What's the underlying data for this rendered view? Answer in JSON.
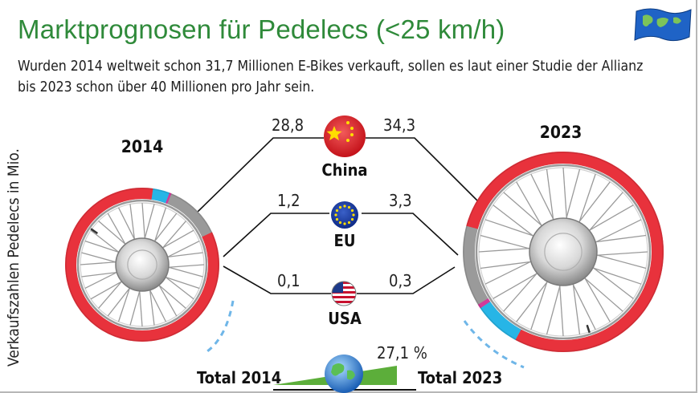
{
  "title": "Marktprognosen für Pedelecs (<25 km/h)",
  "subtitle_line1": "Wurden 2014 weltweit schon 31,7 Millionen E-Bikes verkauft, sollen es laut einer Studie der Allianz",
  "subtitle_line2": "bis 2023 schon über 40 Millionen pro Jahr sein.",
  "ylabel": "Verkaufszahlen Pedelecs in Mio.",
  "growth_label": "27,1 %",
  "colors": {
    "title": "#2f8a3a",
    "china": "#e8323c",
    "eu": "#27b5e6",
    "usa": "#d23a9a",
    "rest": "#9a9a9a",
    "growth": "#5cae3a"
  },
  "icons": {
    "corner": "world-map-flag-icon",
    "china": "china-flag-icon",
    "eu": "eu-flag-icon",
    "usa": "usa-flag-icon",
    "globe": "globe-icon"
  },
  "chart_data": {
    "type": "pie",
    "categories": [
      "China",
      "EU",
      "USA"
    ],
    "series": [
      {
        "name": "2014",
        "values": [
          28.8,
          1.2,
          0.1
        ]
      },
      {
        "name": "2023",
        "values": [
          34.3,
          3.3,
          0.3
        ]
      }
    ],
    "value_labels": {
      "2014": [
        "28,8",
        "1,2",
        "0,1"
      ],
      "2023": [
        "34,3",
        "3,3",
        "0,3"
      ]
    },
    "totals": {
      "labels": [
        "Total 2014",
        "Total 2023"
      ]
    }
  }
}
